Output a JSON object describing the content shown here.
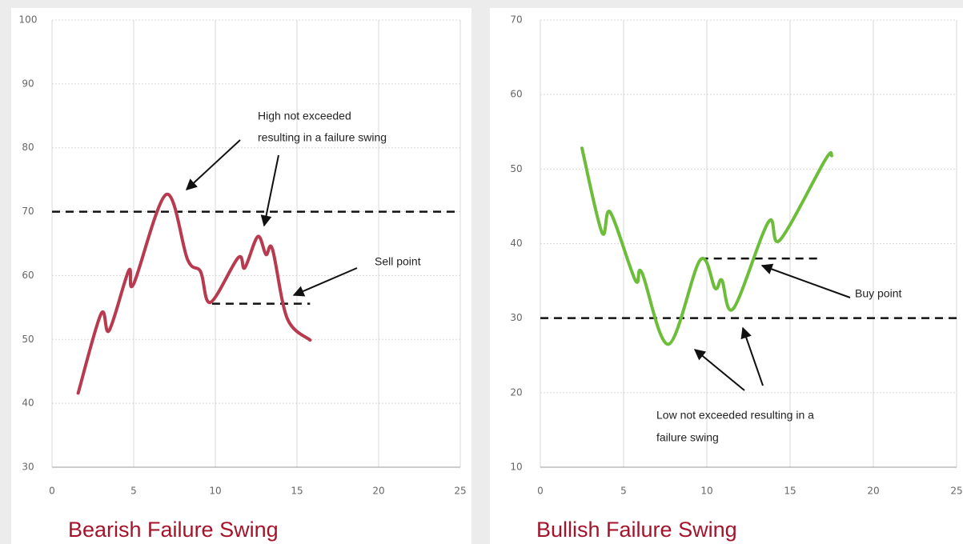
{
  "chart_data": [
    {
      "type": "line",
      "title": "Bearish Failure Swing",
      "annotations": [
        "High not exceeded",
        "resulting in a failure swing",
        "Sell point"
      ],
      "series": [
        {
          "color": "#b83a4e",
          "x": [
            1.6,
            3.0,
            3.5,
            4.7,
            5.0,
            7.0,
            8.3,
            9.1,
            9.7,
            11.4,
            11.8,
            12.6,
            13.1,
            13.5,
            14.4,
            15.8
          ],
          "values": [
            41.6,
            54,
            51.4,
            60.8,
            58.7,
            72.7,
            62.5,
            60.6,
            55.8,
            62.8,
            61.2,
            66.1,
            63.3,
            64.1,
            53.3,
            49.9
          ]
        }
      ],
      "reference_lines": [
        {
          "y": 70,
          "x": [
            0,
            25
          ]
        },
        {
          "y": 55.6,
          "x": [
            9.8,
            15.8
          ]
        }
      ],
      "xlim": [
        0,
        25
      ],
      "xticks": [
        0,
        5,
        10,
        15,
        20,
        25
      ],
      "ylim": [
        30,
        100
      ],
      "yticks": [
        30,
        40,
        50,
        60,
        70,
        80,
        90,
        100
      ],
      "grid": true
    },
    {
      "type": "line",
      "title": "Bullish Failure Swing",
      "annotations": [
        "Buy point",
        "Low not exceeded resulting in a",
        "failure swing"
      ],
      "series": [
        {
          "color": "#6cbd3a",
          "x": [
            2.5,
            3.7,
            4.2,
            5.7,
            6.1,
            7.7,
            9.6,
            10.5,
            10.9,
            11.6,
            13.7,
            14.4,
            17.1,
            17.5
          ],
          "values": [
            52.8,
            41.5,
            44.2,
            35.1,
            36.1,
            26.5,
            37.8,
            34,
            35.1,
            31.3,
            42.9,
            40.5,
            51.2,
            51.8
          ]
        }
      ],
      "reference_lines": [
        {
          "y": 30,
          "x": [
            0,
            25
          ]
        },
        {
          "y": 38,
          "x": [
            9.6,
            16.7
          ]
        }
      ],
      "xlim": [
        0,
        25
      ],
      "xticks": [
        0,
        5,
        10,
        15,
        20,
        25
      ],
      "ylim": [
        10,
        70
      ],
      "yticks": [
        10,
        20,
        30,
        40,
        50,
        60,
        70
      ],
      "grid": true
    }
  ]
}
